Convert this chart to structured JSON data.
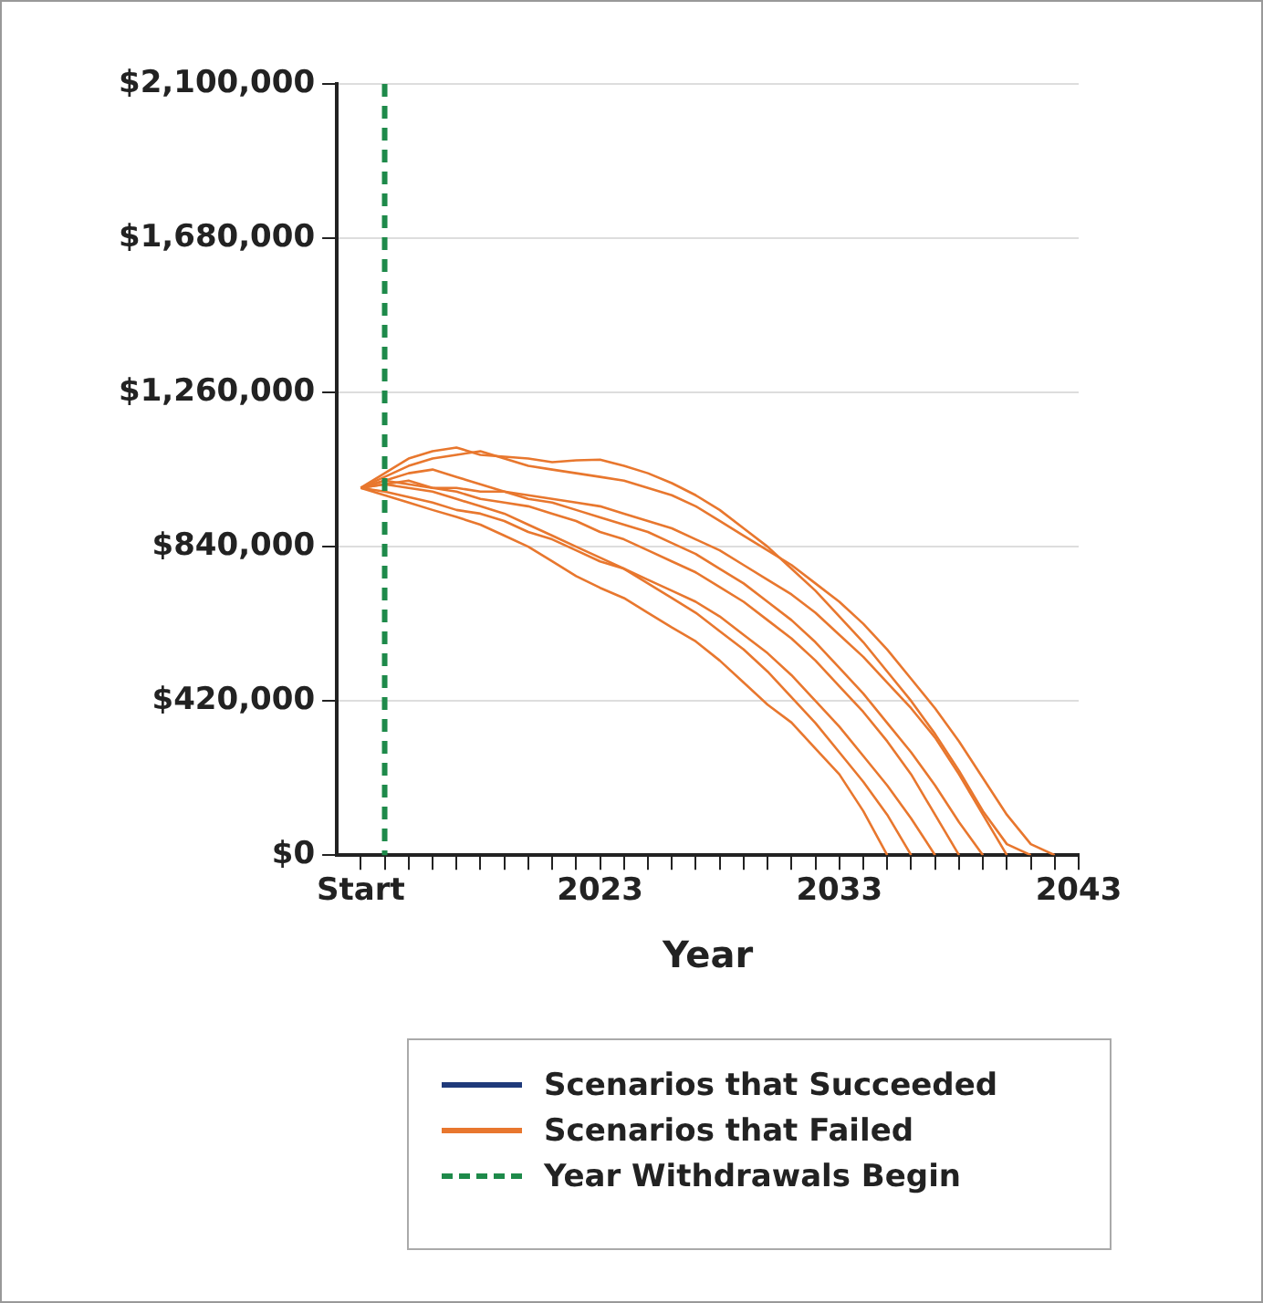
{
  "chart_data": {
    "type": "line",
    "xlabel": "Year",
    "x": [
      2013,
      2014,
      2015,
      2016,
      2017,
      2018,
      2019,
      2020,
      2021,
      2022,
      2023,
      2024,
      2025,
      2026,
      2027,
      2028,
      2029,
      2030,
      2031,
      2032,
      2033,
      2034,
      2035,
      2036,
      2037,
      2038,
      2039,
      2040,
      2041,
      2042
    ],
    "xlim": [
      2012,
      2043
    ],
    "xticks": [
      {
        "value": 2013,
        "label": "Start"
      },
      {
        "value": 2014,
        "label": null
      },
      {
        "value": 2015,
        "label": null
      },
      {
        "value": 2016,
        "label": null
      },
      {
        "value": 2017,
        "label": null
      },
      {
        "value": 2018,
        "label": null
      },
      {
        "value": 2019,
        "label": null
      },
      {
        "value": 2020,
        "label": null
      },
      {
        "value": 2021,
        "label": null
      },
      {
        "value": 2022,
        "label": null
      },
      2023,
      {
        "value": 2024,
        "label": null
      },
      {
        "value": 2025,
        "label": null
      },
      {
        "value": 2026,
        "label": null
      },
      {
        "value": 2027,
        "label": null
      },
      {
        "value": 2028,
        "label": null
      },
      {
        "value": 2029,
        "label": null
      },
      {
        "value": 2030,
        "label": null
      },
      {
        "value": 2031,
        "label": null
      },
      {
        "value": 2032,
        "label": null
      },
      2033,
      {
        "value": 2034,
        "label": null
      },
      {
        "value": 2035,
        "label": null
      },
      {
        "value": 2036,
        "label": null
      },
      {
        "value": 2037,
        "label": null
      },
      {
        "value": 2038,
        "label": null
      },
      {
        "value": 2039,
        "label": null
      },
      {
        "value": 2040,
        "label": null
      },
      {
        "value": 2041,
        "label": null
      },
      {
        "value": 2042,
        "label": null
      },
      2043
    ],
    "ylim": [
      0,
      2100000
    ],
    "yticks": [
      {
        "value": 0,
        "label": "$0"
      },
      {
        "value": 420000,
        "label": "$420,000"
      },
      {
        "value": 840000,
        "label": "$840,000"
      },
      {
        "value": 1260000,
        "label": "$1,260,000"
      },
      {
        "value": 1680000,
        "label": "$1,680,000"
      },
      {
        "value": 2100000,
        "label": "$2,100,000"
      }
    ],
    "grid": "y",
    "legend": "bottom",
    "marker": "none",
    "ref_lines": [
      {
        "axis": "x",
        "value": 2014,
        "label": "Year Withdrawals Begin",
        "color": "#1e8a4a",
        "line_style": "dashed"
      }
    ],
    "series": [
      {
        "name": "Scenarios that Succeeded",
        "color": "#1f3a7a",
        "values": [
          null,
          null,
          null,
          null,
          null,
          null,
          null,
          null,
          null,
          null,
          null,
          null,
          null,
          null,
          null,
          null,
          null,
          null,
          null,
          null,
          null,
          null,
          null,
          null,
          null,
          null,
          null,
          null,
          null,
          null
        ]
      },
      {
        "name": "Scenarios that Failed",
        "color": "#e8772e",
        "values": [
          1000000,
          1040000,
          1080000,
          1100000,
          1110000,
          1090000,
          1085000,
          1080000,
          1070000,
          1075000,
          1077000,
          1060000,
          1040000,
          1013000,
          980000,
          940000,
          890000,
          840000,
          780000,
          720000,
          650000,
          580000,
          500000,
          420000,
          330000,
          230000,
          120000,
          30000,
          0,
          null
        ]
      },
      {
        "color": "#e8772e",
        "values": [
          1000000,
          1030000,
          1060000,
          1080000,
          1090000,
          1100000,
          1080000,
          1060000,
          1050000,
          1040000,
          1030000,
          1020000,
          1000000,
          980000,
          950000,
          910000,
          870000,
          830000,
          790000,
          740000,
          690000,
          630000,
          560000,
          480000,
          400000,
          310000,
          210000,
          110000,
          30000,
          0
        ]
      },
      {
        "color": "#e8772e",
        "values": [
          1000000,
          980000,
          960000,
          940000,
          921000,
          900000,
          870000,
          840000,
          800000,
          760000,
          728000,
          700000,
          660000,
          620000,
          582000,
          530000,
          470000,
          410000,
          361000,
          290000,
          220000,
          120000,
          0,
          null,
          null,
          null,
          null,
          null,
          null,
          null
        ]
      },
      {
        "color": "#e8772e",
        "values": [
          1000000,
          990000,
          975000,
          960000,
          940000,
          930000,
          910000,
          880000,
          860000,
          830000,
          800000,
          780000,
          750000,
          720000,
          690000,
          650000,
          600000,
          550000,
          490000,
          420000,
          350000,
          270000,
          190000,
          100000,
          0,
          null,
          null,
          null,
          null,
          null
        ]
      },
      {
        "color": "#e8772e",
        "values": [
          1000000,
          1010000,
          1020000,
          1000000,
          990000,
          970000,
          960000,
          950000,
          930000,
          910000,
          880000,
          860000,
          830000,
          800000,
          770000,
          730000,
          690000,
          640000,
          590000,
          530000,
          460000,
          390000,
          310000,
          220000,
          110000,
          0,
          null,
          null,
          null,
          null
        ]
      },
      {
        "color": "#e8772e",
        "values": [
          1000000,
          1020000,
          1040000,
          1050000,
          1030000,
          1010000,
          990000,
          970000,
          960000,
          940000,
          920000,
          900000,
          880000,
          850000,
          820000,
          780000,
          740000,
          690000,
          640000,
          580000,
          510000,
          440000,
          360000,
          280000,
          190000,
          90000,
          0,
          null,
          null,
          null
        ]
      },
      {
        "color": "#e8772e",
        "values": [
          1000000,
          1010000,
          1000000,
          990000,
          970000,
          950000,
          930000,
          900000,
          870000,
          840000,
          810000,
          780000,
          740000,
          700000,
          660000,
          610000,
          560000,
          500000,
          430000,
          360000,
          280000,
          200000,
          110000,
          0,
          null,
          null,
          null,
          null,
          null,
          null
        ]
      },
      {
        "color": "#e8772e",
        "values": [
          1000000,
          1020000,
          1010000,
          1000000,
          1000000,
          990000,
          990000,
          980000,
          970000,
          960000,
          950000,
          930000,
          910000,
          890000,
          860000,
          830000,
          790000,
          750000,
          710000,
          660000,
          600000,
          540000,
          470000,
          400000,
          320000,
          220000,
          110000,
          0,
          null,
          null
        ]
      }
    ]
  }
}
